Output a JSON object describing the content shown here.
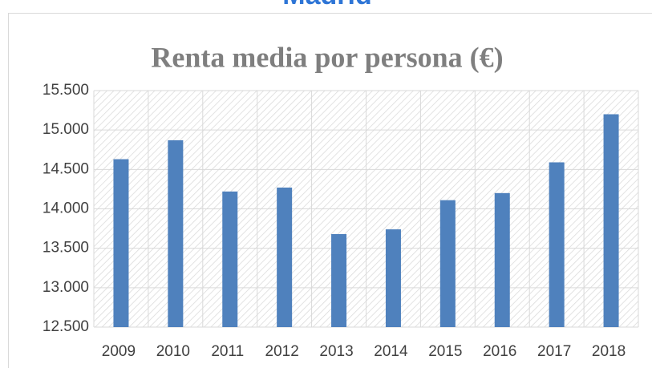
{
  "header": {
    "title": "Madrid"
  },
  "chart_data": {
    "type": "bar",
    "title": "Renta media por persona (€)",
    "categories": [
      "2009",
      "2010",
      "2011",
      "2012",
      "2013",
      "2014",
      "2015",
      "2016",
      "2017",
      "2018"
    ],
    "values": [
      14630,
      14870,
      14220,
      14270,
      13680,
      13740,
      14110,
      14200,
      14590,
      15200
    ],
    "color": "#4f81bd",
    "ylim": [
      12500,
      15500
    ],
    "yticks": [
      {
        "value": 12500,
        "label": "12.500"
      },
      {
        "value": 13000,
        "label": "13.000"
      },
      {
        "value": 13500,
        "label": "13.500"
      },
      {
        "value": 14000,
        "label": "14.000"
      },
      {
        "value": 14500,
        "label": "14.500"
      },
      {
        "value": 15000,
        "label": "15.000"
      },
      {
        "value": 15500,
        "label": "15.500"
      }
    ],
    "grid": true
  }
}
